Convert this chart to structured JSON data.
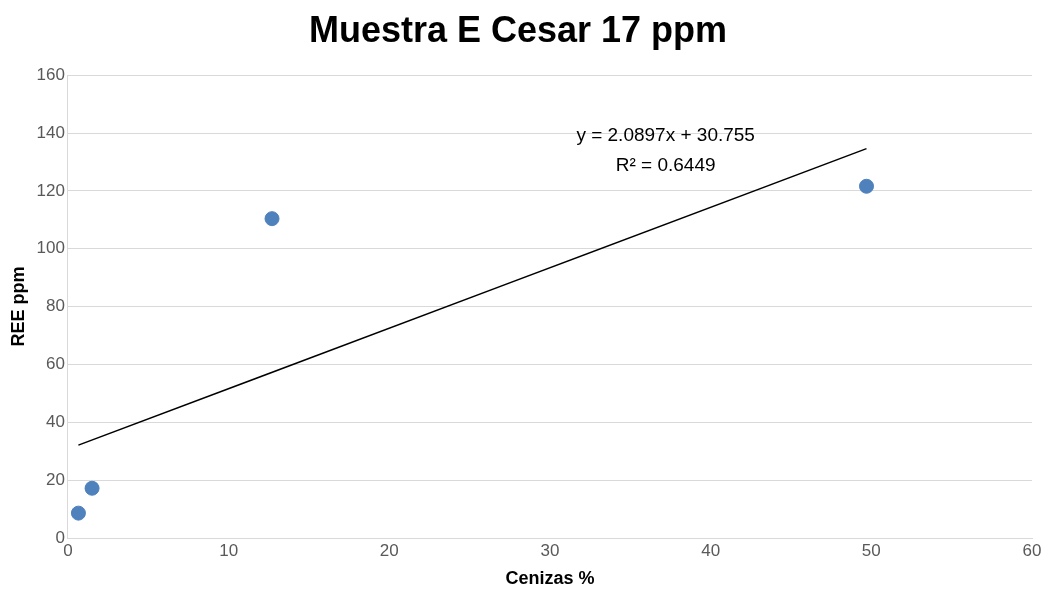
{
  "chart_data": {
    "type": "scatter",
    "title": "Muestra E Cesar 17 ppm",
    "xlabel": "Cenizas %",
    "ylabel": "REE ppm",
    "xlim": [
      0,
      60
    ],
    "xticks": [
      0,
      10,
      20,
      30,
      40,
      50,
      60
    ],
    "ylim": [
      0,
      160
    ],
    "yticks": [
      0,
      20,
      40,
      60,
      80,
      100,
      120,
      140,
      160
    ],
    "grid": "y",
    "legend": false,
    "series": [
      {
        "marker": "circle",
        "color": "#4f81bd",
        "x": [
          0.65,
          1.5,
          12.7,
          49.7
        ],
        "values": [
          8.6,
          17.2,
          110.4,
          121.6
        ]
      },
      {
        "type": "line",
        "marker": "none",
        "color": "#000000",
        "x": [
          0.65,
          49.7
        ],
        "values": [
          32.1,
          134.6
        ]
      }
    ],
    "annotations": [
      "y = 2.0897x + 30.755",
      "R² = 0.6449"
    ]
  }
}
